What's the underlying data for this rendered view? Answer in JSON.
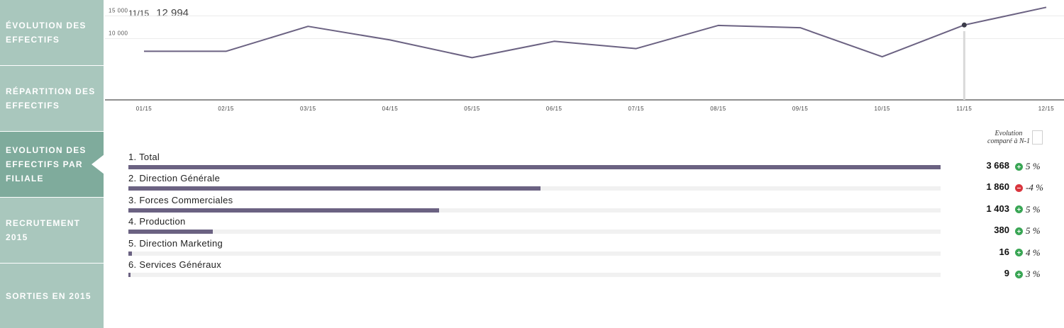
{
  "sidebar": {
    "items": [
      {
        "label": "Évolution des effectifs",
        "active": false
      },
      {
        "label": "Répartition des effectifs",
        "active": false
      },
      {
        "label": "Evolution des effectifs par filiale",
        "active": true
      },
      {
        "label": "Recrutement 2015",
        "active": false
      },
      {
        "label": "Sorties en 2015",
        "active": false
      }
    ]
  },
  "readout": {
    "month": "11/15",
    "value": "12 994"
  },
  "chart_data": {
    "type": "line",
    "x": [
      "01/15",
      "02/15",
      "03/15",
      "04/15",
      "05/15",
      "06/15",
      "07/15",
      "08/15",
      "09/15",
      "10/15",
      "11/15",
      "12/15"
    ],
    "series": [
      {
        "values": [
          7200,
          7200,
          12700,
          9700,
          5800,
          9400,
          7800,
          12900,
          12400,
          6000,
          12994,
          16900
        ]
      }
    ],
    "y_ticks": [
      "15 000",
      "10 000"
    ],
    "y_tick_values": [
      15000,
      10000
    ],
    "ylim": [
      -3500,
      18500
    ],
    "highlight_index": 10,
    "color": "#6b6282"
  },
  "comparison": {
    "header": "Evolution comparé à N-1"
  },
  "bars": {
    "max": 3668,
    "rows": [
      {
        "label": "1. Total",
        "value": 3668,
        "value_text": "3 668",
        "delta": "5 %",
        "trend": "up"
      },
      {
        "label": "2. Direction Générale",
        "value": 1860,
        "value_text": "1 860",
        "delta": "-4 %",
        "trend": "down"
      },
      {
        "label": "3. Forces Commerciales",
        "value": 1403,
        "value_text": "1 403",
        "delta": "5 %",
        "trend": "up"
      },
      {
        "label": "4. Production",
        "value": 380,
        "value_text": "380",
        "delta": "5 %",
        "trend": "up"
      },
      {
        "label": "5. Direction Marketing",
        "value": 16,
        "value_text": "16",
        "delta": "4 %",
        "trend": "up"
      },
      {
        "label": "6. Services Généraux",
        "value": 9,
        "value_text": "9",
        "delta": "3 %",
        "trend": "up"
      }
    ],
    "color": "#6b6282"
  }
}
